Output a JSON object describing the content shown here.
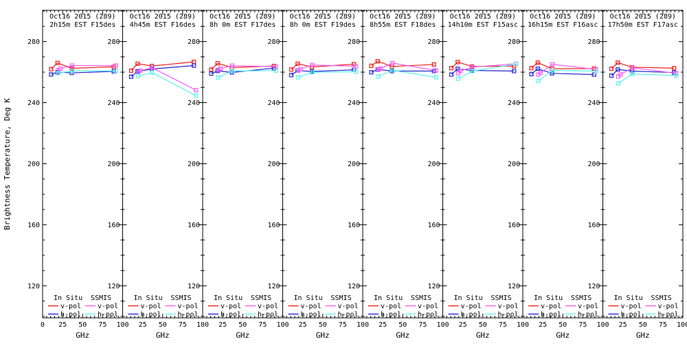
{
  "page": {
    "background": "#ffffff"
  },
  "ylabel": "Brightness Temperature, Deg K",
  "xlabel": "GHz",
  "colors": {
    "in_situ_v": "#ee1c1c",
    "in_situ_h": "#2424cc",
    "ssmis_v": "#f55ef5",
    "ssmis_h": "#5ef0f0",
    "axis": "#000000"
  },
  "legend": {
    "col1_header": "In Situ",
    "col2_header": "SSMIS",
    "vpol_label": "v-pol",
    "hpol_label": "h-pol"
  },
  "axes": {
    "xlim": [
      0,
      100
    ],
    "xticks": [
      0,
      25,
      50,
      75,
      100
    ],
    "xminor_step": 5,
    "ylim": [
      99,
      300.5
    ],
    "yticks": [
      120,
      160,
      200,
      240,
      280
    ],
    "yminor_step": 10
  },
  "chart_data": {
    "type": "line",
    "title_line1": "Oct16 2015 (289)",
    "ylabel": "Brightness Temperature, Deg K",
    "xlabel": "GHz",
    "x_freqs_ghz": {
      "in_situ": [
        10.7,
        18.7,
        36.5,
        89.0
      ],
      "ssmis_v": [
        19.35,
        22.235,
        37.0,
        91.655
      ],
      "ssmis_h": [
        19.35,
        37.0,
        91.655
      ]
    },
    "panels": [
      {
        "title2": "2h15m EST F15des",
        "in_situ_v": [
          262.0,
          266.0,
          262.5,
          263.5
        ],
        "in_situ_h": [
          258.5,
          260.0,
          259.5,
          260.5
        ],
        "ssmis_v": [
          261.2,
          262.3,
          264.3,
          264.3
        ],
        "ssmis_h": [
          259.3,
          260.8,
          260.8
        ]
      },
      {
        "title2": "4h45m EST F16des",
        "in_situ_v": [
          261.0,
          265.5,
          264.0,
          266.7
        ],
        "in_situ_h": [
          257.0,
          260.5,
          262.0,
          264.3
        ],
        "ssmis_v": [
          259.8,
          261.0,
          262.8,
          248.2
        ],
        "ssmis_h": [
          257.5,
          259.6,
          244.6
        ]
      },
      {
        "title2": "8h 0m EST F17des",
        "in_situ_v": [
          261.7,
          265.8,
          263.0,
          264.0
        ],
        "in_situ_h": [
          259.0,
          260.8,
          259.8,
          262.6
        ],
        "ssmis_v": [
          261.5,
          262.3,
          264.2,
          263.6
        ],
        "ssmis_h": [
          256.5,
          260.7,
          261.0
        ]
      },
      {
        "title2": "8h 0m EST F19des",
        "in_situ_v": [
          261.7,
          265.5,
          263.4,
          265.2
        ],
        "in_situ_h": [
          258.1,
          261.0,
          260.4,
          261.5
        ],
        "ssmis_v": [
          261.0,
          262.0,
          264.7,
          263.8
        ],
        "ssmis_h": [
          256.6,
          259.9,
          260.3
        ]
      },
      {
        "title2": "8h55m EST F18des",
        "in_situ_v": [
          264.1,
          267.1,
          263.7,
          265.0
        ],
        "in_situ_h": [
          259.9,
          261.7,
          260.7,
          260.7
        ],
        "ssmis_v": [
          261.5,
          262.3,
          265.9,
          261.1
        ],
        "ssmis_h": [
          257.2,
          261.2,
          256.6
        ]
      },
      {
        "title2": "14h10m EST F15asc",
        "in_situ_v": [
          262.6,
          266.6,
          263.7,
          264.0
        ],
        "in_situ_h": [
          258.4,
          262.2,
          261.1,
          260.7
        ],
        "ssmis_v": [
          259.2,
          260.8,
          263.3,
          265.5
        ],
        "ssmis_h": [
          255.7,
          260.7,
          265.3
        ]
      },
      {
        "title2": "16h15m EST F16asc",
        "in_situ_v": [
          262.6,
          266.2,
          262.2,
          262.3
        ],
        "in_situ_h": [
          258.7,
          262.2,
          259.2,
          258.4
        ],
        "ssmis_v": [
          258.4,
          259.5,
          265.2,
          261.7
        ],
        "ssmis_h": [
          254.2,
          261.1,
          260.7
        ]
      },
      {
        "title2": "17h50m EST F17asc",
        "in_situ_v": [
          262.2,
          266.2,
          263.2,
          262.6
        ],
        "in_situ_h": [
          257.7,
          261.7,
          260.7,
          259.7
        ],
        "ssmis_v": [
          257.2,
          258.5,
          262.9,
          259.2
        ],
        "ssmis_h": [
          252.7,
          258.8,
          257.7
        ]
      }
    ]
  }
}
